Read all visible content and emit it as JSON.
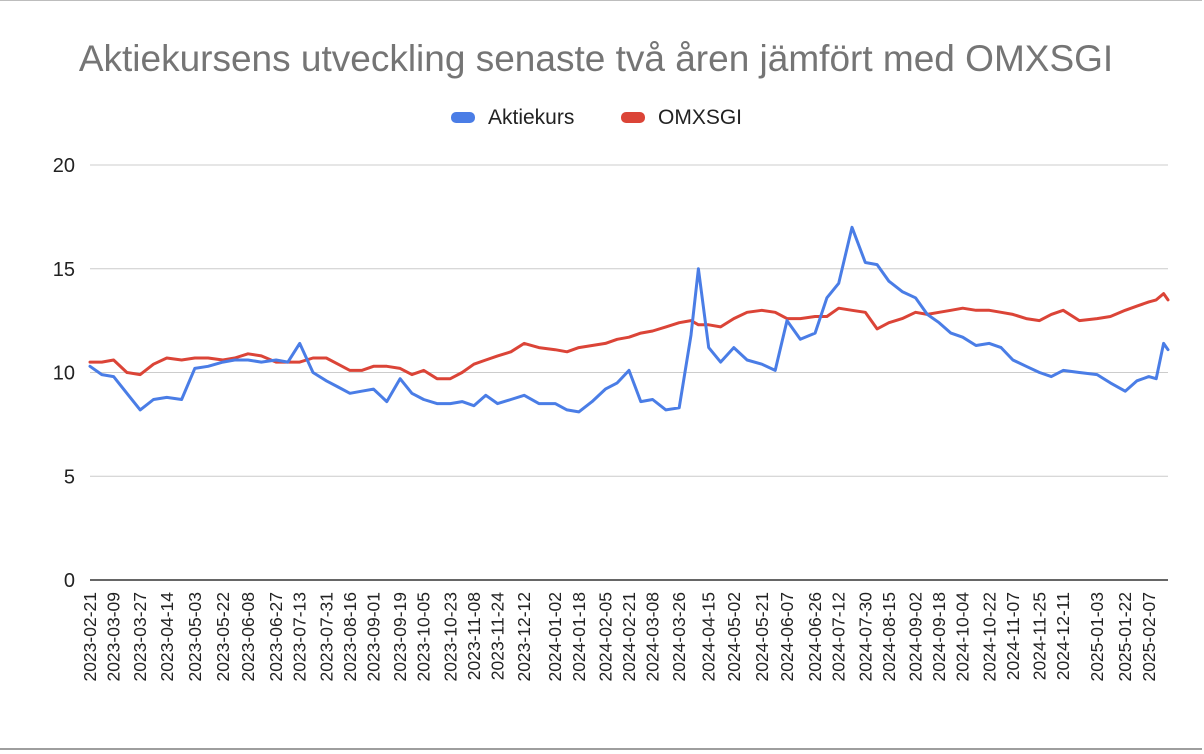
{
  "chart_data": {
    "type": "line",
    "title": "Aktiekursens utveckling senaste två åren jämfört med OMXSGI",
    "xlabel": "",
    "ylabel": "",
    "ylim": [
      0,
      20
    ],
    "yticks": [
      "0",
      "5",
      "10",
      "15",
      "20"
    ],
    "grid": true,
    "legend_position": "top",
    "xtick_labels": [
      "2023-02-21",
      "2023-03-09",
      "2023-03-27",
      "2023-04-14",
      "2023-05-03",
      "2023-05-22",
      "2023-06-08",
      "2023-06-27",
      "2023-07-13",
      "2023-07-31",
      "2023-08-16",
      "2023-09-01",
      "2023-09-19",
      "2023-10-05",
      "2023-10-23",
      "2023-11-08",
      "2023-11-24",
      "2023-12-12",
      "2024-01-02",
      "2024-01-18",
      "2024-02-05",
      "2024-02-21",
      "2024-03-08",
      "2024-03-26",
      "2024-04-15",
      "2024-05-02",
      "2024-05-21",
      "2024-06-07",
      "2024-06-26",
      "2024-07-12",
      "2024-07-30",
      "2024-08-15",
      "2024-09-02",
      "2024-09-18",
      "2024-10-04",
      "2024-10-22",
      "2024-11-07",
      "2024-11-25",
      "2024-12-11",
      "2025-01-03",
      "2025-01-22",
      "2025-02-07"
    ],
    "x": [
      "2023-02-21",
      "2023-03-01",
      "2023-03-09",
      "2023-03-18",
      "2023-03-27",
      "2023-04-05",
      "2023-04-14",
      "2023-04-24",
      "2023-05-03",
      "2023-05-12",
      "2023-05-22",
      "2023-05-30",
      "2023-06-08",
      "2023-06-17",
      "2023-06-27",
      "2023-07-05",
      "2023-07-13",
      "2023-07-22",
      "2023-07-31",
      "2023-08-08",
      "2023-08-16",
      "2023-08-24",
      "2023-09-01",
      "2023-09-10",
      "2023-09-19",
      "2023-09-27",
      "2023-10-05",
      "2023-10-14",
      "2023-10-23",
      "2023-10-31",
      "2023-11-08",
      "2023-11-16",
      "2023-11-24",
      "2023-12-03",
      "2023-12-12",
      "2023-12-22",
      "2024-01-02",
      "2024-01-10",
      "2024-01-18",
      "2024-01-27",
      "2024-02-05",
      "2024-02-13",
      "2024-02-21",
      "2024-02-29",
      "2024-03-08",
      "2024-03-17",
      "2024-03-26",
      "2024-04-03",
      "2024-04-08",
      "2024-04-15",
      "2024-04-23",
      "2024-05-02",
      "2024-05-11",
      "2024-05-21",
      "2024-05-30",
      "2024-06-07",
      "2024-06-16",
      "2024-06-26",
      "2024-07-04",
      "2024-07-12",
      "2024-07-21",
      "2024-07-30",
      "2024-08-07",
      "2024-08-15",
      "2024-08-24",
      "2024-09-02",
      "2024-09-10",
      "2024-09-18",
      "2024-09-26",
      "2024-10-04",
      "2024-10-13",
      "2024-10-22",
      "2024-10-30",
      "2024-11-07",
      "2024-11-16",
      "2024-11-25",
      "2024-12-03",
      "2024-12-11",
      "2024-12-22",
      "2025-01-03",
      "2025-01-12",
      "2025-01-22",
      "2025-01-30",
      "2025-02-07",
      "2025-02-12",
      "2025-02-17",
      "2025-02-20"
    ],
    "series": [
      {
        "name": "Aktiekurs",
        "color": "#4a7de6",
        "values": [
          10.3,
          9.9,
          9.8,
          9.0,
          8.2,
          8.7,
          8.8,
          8.7,
          10.2,
          10.3,
          10.5,
          10.6,
          10.6,
          10.5,
          10.6,
          10.5,
          11.4,
          10.0,
          9.6,
          9.3,
          9.0,
          9.1,
          9.2,
          8.6,
          9.7,
          9.0,
          8.7,
          8.5,
          8.5,
          8.6,
          8.4,
          8.9,
          8.5,
          8.7,
          8.9,
          8.5,
          8.5,
          8.2,
          8.1,
          8.6,
          9.2,
          9.5,
          10.1,
          8.6,
          8.7,
          8.2,
          8.3,
          11.8,
          15.0,
          11.2,
          10.5,
          11.2,
          10.6,
          10.4,
          10.1,
          12.5,
          11.6,
          11.9,
          13.6,
          14.3,
          17.0,
          15.3,
          15.2,
          14.4,
          13.9,
          13.6,
          12.8,
          12.4,
          11.9,
          11.7,
          11.3,
          11.4,
          11.2,
          10.6,
          10.3,
          10.0,
          9.8,
          10.1,
          10.0,
          9.9,
          9.5,
          9.1,
          9.6,
          9.8,
          9.7,
          11.4,
          11.1
        ]
      },
      {
        "name": "OMXSGI",
        "color": "#db4437",
        "values": [
          10.5,
          10.5,
          10.6,
          10.0,
          9.9,
          10.4,
          10.7,
          10.6,
          10.7,
          10.7,
          10.6,
          10.7,
          10.9,
          10.8,
          10.5,
          10.5,
          10.5,
          10.7,
          10.7,
          10.4,
          10.1,
          10.1,
          10.3,
          10.3,
          10.2,
          9.9,
          10.1,
          9.7,
          9.7,
          10.0,
          10.4,
          10.6,
          10.8,
          11.0,
          11.4,
          11.2,
          11.1,
          11.0,
          11.2,
          11.3,
          11.4,
          11.6,
          11.7,
          11.9,
          12.0,
          12.2,
          12.4,
          12.5,
          12.3,
          12.3,
          12.2,
          12.6,
          12.9,
          13.0,
          12.9,
          12.6,
          12.6,
          12.7,
          12.7,
          13.1,
          13.0,
          12.9,
          12.1,
          12.4,
          12.6,
          12.9,
          12.8,
          12.9,
          13.0,
          13.1,
          13.0,
          13.0,
          12.9,
          12.8,
          12.6,
          12.5,
          12.8,
          13.0,
          12.5,
          12.6,
          12.7,
          13.0,
          13.2,
          13.4,
          13.5,
          13.8,
          13.5
        ]
      }
    ]
  }
}
